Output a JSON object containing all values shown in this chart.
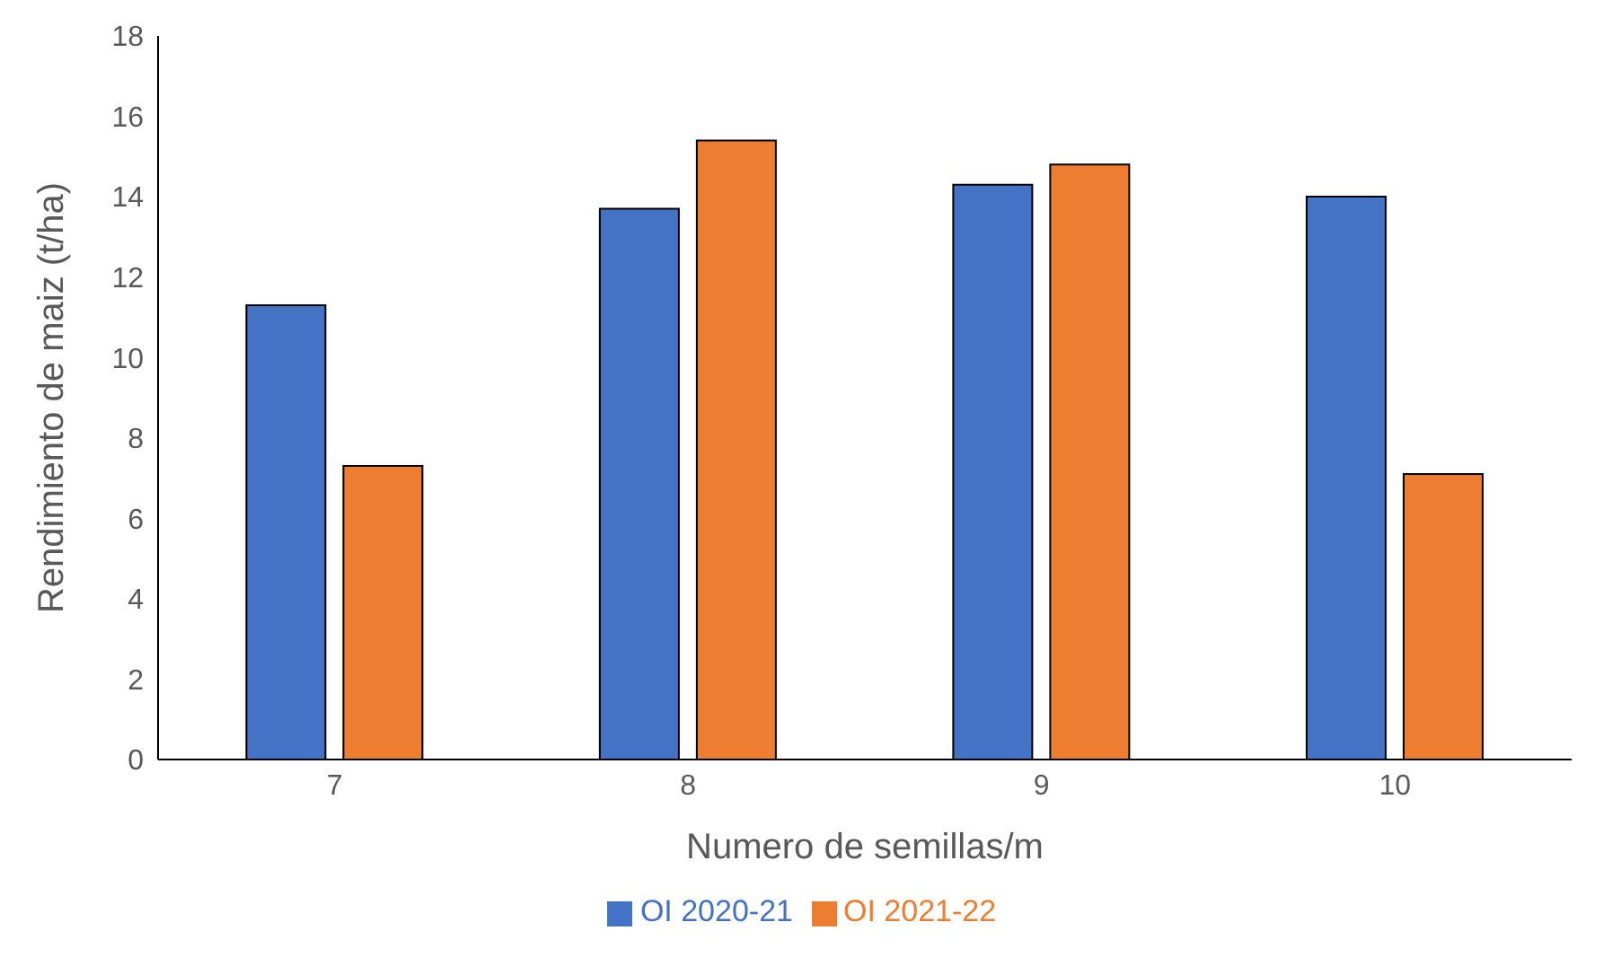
{
  "chart_data": {
    "type": "bar",
    "xlabel": "Numero de semillas/m",
    "ylabel": "Rendimiento de maiz (t/ha)",
    "categories": [
      "7",
      "8",
      "9",
      "10"
    ],
    "series": [
      {
        "name": "OI 2020-21",
        "color": "#4472c4",
        "values": [
          11.3,
          13.7,
          14.3,
          14.0
        ]
      },
      {
        "name": "OI 2021-22",
        "color": "#ed7d31",
        "values": [
          7.3,
          15.4,
          14.8,
          7.1
        ]
      }
    ],
    "ylim": [
      0,
      18
    ],
    "yticks": [
      0,
      2,
      4,
      6,
      8,
      10,
      12,
      14,
      16,
      18
    ],
    "grid": false,
    "legend": "bottom"
  }
}
